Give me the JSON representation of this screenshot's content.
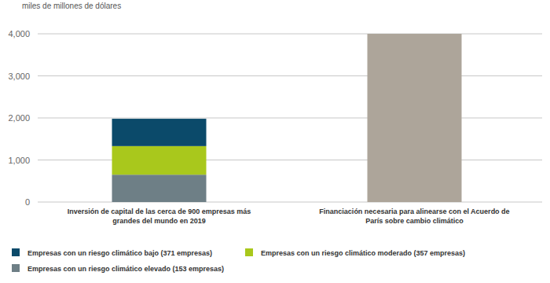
{
  "chart_data": {
    "type": "bar",
    "stacked": true,
    "grid": true,
    "y_label": "miles de millones de dólares",
    "categories": [
      "Inversión de capital de las cerca de 900 empresas más grandes del mundo en 2019",
      "Financiación necesaria para alinearse con el Acuerdo de París sobre cambio climático"
    ],
    "series": [
      {
        "name": "Empresas con un riesgo climático elevado (153 empresas)",
        "color": "#6e7f86",
        "values": [
          650,
          null
        ]
      },
      {
        "name": "Empresas con un riesgo climático moderado (357 empresas)",
        "color": "#a9c81c",
        "values": [
          680,
          null
        ]
      },
      {
        "name": "Empresas con un riesgo climático bajo (371 empresas)",
        "color": "#0b4a6a",
        "values": [
          650,
          null
        ]
      },
      {
        "color": "#ada59a",
        "values": [
          null,
          4000
        ]
      }
    ],
    "ylim": [
      0,
      4000
    ],
    "yticks": [
      0,
      {
        "value": 1000,
        "label": "1,000"
      },
      {
        "value": 2000,
        "label": "2,000"
      },
      {
        "value": 3000,
        "label": "3,000"
      },
      {
        "value": 4000,
        "label": "4,000"
      }
    ]
  }
}
